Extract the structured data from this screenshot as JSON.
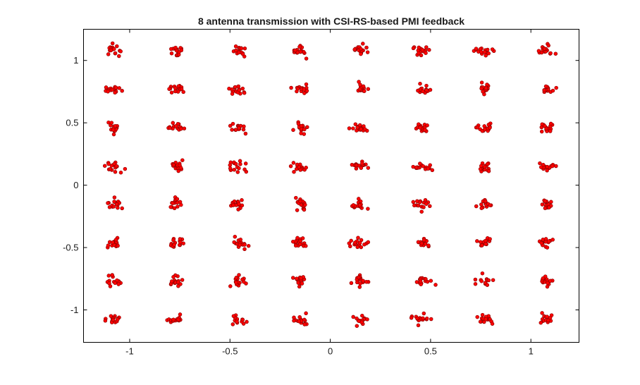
{
  "chart_data": {
    "type": "scatter",
    "title": "8 antenna transmission with CSI-RS-based PMI feedback",
    "xlabel": "",
    "ylabel": "",
    "xlim": [
      -1.23,
      1.24
    ],
    "ylim": [
      -1.26,
      1.25
    ],
    "grid": false,
    "legend": "none",
    "x_ticks": [
      {
        "value": -1,
        "label": "-1"
      },
      {
        "value": -0.5,
        "label": "-0.5"
      },
      {
        "value": 0,
        "label": "0"
      },
      {
        "value": 0.5,
        "label": "0.5"
      },
      {
        "value": 1,
        "label": "1"
      }
    ],
    "y_ticks": [
      {
        "value": 1,
        "label": "1"
      },
      {
        "value": 0.5,
        "label": "0.5"
      },
      {
        "value": 0,
        "label": "0"
      },
      {
        "value": -0.5,
        "label": "-0.5"
      },
      {
        "value": -1,
        "label": "-1"
      }
    ],
    "marker_fill": "#ff0000",
    "marker_edge": "#8b0000",
    "constellation": {
      "levels": [
        -1.08,
        -0.77,
        -0.46,
        -0.15,
        0.15,
        0.46,
        0.77,
        1.08
      ],
      "points_per_symbol": 16,
      "spread": 0.035
    }
  }
}
